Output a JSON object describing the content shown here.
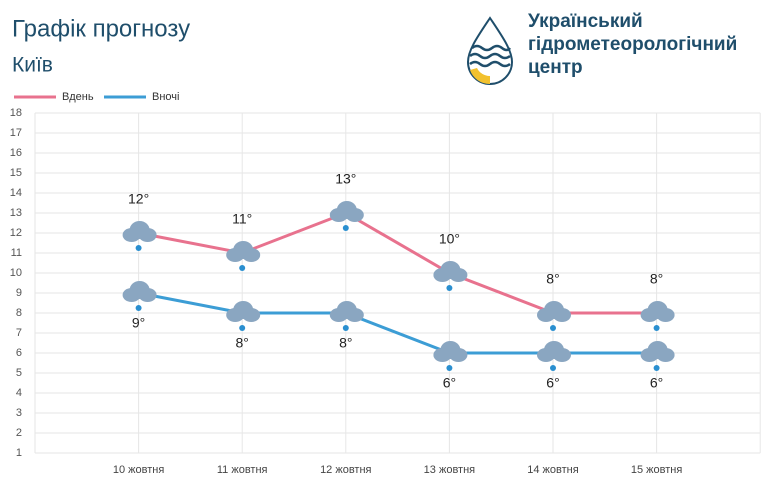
{
  "header": {
    "title": "Графік прогнозу",
    "subtitle": "Київ",
    "logo_text": [
      "Український",
      "гідрометеорологічний",
      "центр"
    ]
  },
  "chart_data": {
    "type": "line",
    "categories": [
      "10 жовтня",
      "11 жовтня",
      "12 жовтня",
      "13 жовтня",
      "14 жовтня",
      "15 жовтня"
    ],
    "series": [
      {
        "name": "Вдень",
        "color": "#e8728e",
        "values": [
          12,
          11,
          13,
          10,
          8,
          8
        ],
        "value_labels": [
          "12°",
          "11°",
          "13°",
          "10°",
          "8°",
          "8°"
        ]
      },
      {
        "name": "Вночі",
        "color": "#3c9dd5",
        "values": [
          9,
          8,
          8,
          6,
          6,
          6
        ],
        "value_labels": [
          "9°",
          "8°",
          "8°",
          "6°",
          "6°",
          "6°"
        ]
      }
    ],
    "ylim": [
      1,
      18
    ],
    "yticks": [
      1,
      2,
      3,
      4,
      5,
      6,
      7,
      8,
      9,
      10,
      11,
      12,
      13,
      14,
      15,
      16,
      17,
      18
    ],
    "grid": true
  }
}
